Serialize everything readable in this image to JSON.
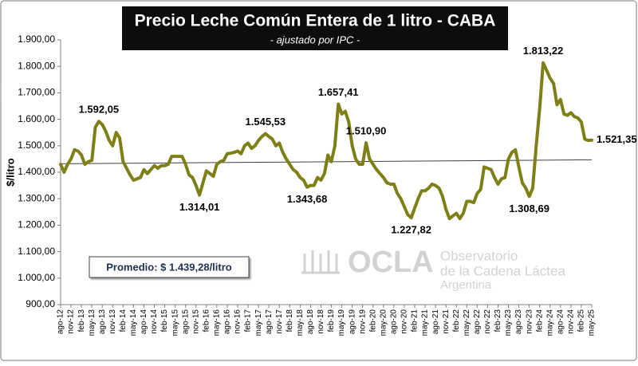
{
  "chart_data": {
    "type": "line",
    "title": "Precio Leche Común Entera de 1 litro - CABA",
    "subtitle": "- ajustado por IPC -",
    "y_label": "$/litro",
    "average_label": "Promedio: $ 1.439,28/litro",
    "logo": {
      "name": "OCLA",
      "lines": [
        "Observatorio",
        "de la Cadena Láctea",
        "Argentina"
      ]
    },
    "color": "#7f7f17",
    "trend": {
      "values": [
        1432,
        1447
      ],
      "color": "#404040"
    },
    "ylim": [
      900,
      1900
    ],
    "yticks": [
      {
        "value": 900,
        "label": "900,00"
      },
      {
        "value": 1000,
        "label": "1.000,00"
      },
      {
        "value": 1100,
        "label": "1.100,00"
      },
      {
        "value": 1200,
        "label": "1.200,00"
      },
      {
        "value": 1300,
        "label": "1.300,00"
      },
      {
        "value": 1400,
        "label": "1.400,00"
      },
      {
        "value": 1500,
        "label": "1.500,00"
      },
      {
        "value": 1600,
        "label": "1.600,00"
      },
      {
        "value": 1700,
        "label": "1.700,00"
      },
      {
        "value": 1800,
        "label": "1.800,00"
      },
      {
        "value": 1900,
        "label": "1.900,00"
      }
    ],
    "categories": [
      "ago-12",
      null,
      null,
      "nov-12",
      null,
      null,
      "feb-13",
      null,
      null,
      "may-13",
      null,
      null,
      "ago-13",
      null,
      null,
      "nov-13",
      null,
      null,
      "feb-14",
      null,
      null,
      "may-14",
      null,
      null,
      "ago-14",
      null,
      null,
      "nov-14",
      null,
      null,
      "feb-15",
      null,
      null,
      "may-15",
      null,
      null,
      "ago-15",
      null,
      null,
      "nov-15",
      null,
      null,
      "feb-16",
      null,
      null,
      "may-16",
      null,
      null,
      "ago-16",
      null,
      null,
      "nov-16",
      null,
      null,
      "feb-17",
      null,
      null,
      "may-17",
      null,
      null,
      "ago-17",
      null,
      null,
      "nov-17",
      null,
      null,
      "feb-18",
      null,
      null,
      "may-18",
      null,
      null,
      "ago-18",
      null,
      null,
      "nov-18",
      null,
      null,
      "feb-19",
      null,
      null,
      "may-19",
      null,
      null,
      "ago-19",
      null,
      null,
      "nov-19",
      null,
      null,
      "feb-20",
      null,
      null,
      "may-20",
      null,
      null,
      "ago-20",
      null,
      null,
      "nov-20",
      null,
      null,
      "feb-21",
      null,
      null,
      "may-21",
      null,
      null,
      "ago-21",
      null,
      null,
      "nov-21",
      null,
      null,
      "feb-22",
      null,
      null,
      "may-22",
      null,
      null,
      "ago-22",
      null,
      null,
      "nov-22",
      null,
      null,
      "feb-23",
      null,
      null,
      "may-23",
      null,
      null,
      "ago-23",
      null,
      null,
      "nov-23",
      null,
      null,
      "feb-24",
      null,
      null,
      "may-24",
      null,
      null,
      "ago-24",
      null,
      null,
      "nov-24",
      null,
      null,
      "feb-25",
      null,
      null,
      "may-25"
    ],
    "values": [
      1430,
      1400,
      1430,
      1450,
      1485,
      1480,
      1465,
      1430,
      1440,
      1445,
      1570,
      1592.05,
      1580,
      1555,
      1520,
      1500,
      1550,
      1530,
      1440,
      1415,
      1390,
      1370,
      1375,
      1380,
      1410,
      1395,
      1410,
      1425,
      1415,
      1425,
      1425,
      1430,
      1460,
      1460,
      1460,
      1460,
      1430,
      1390,
      1380,
      1350,
      1314.01,
      1360,
      1405,
      1395,
      1385,
      1430,
      1440,
      1445,
      1470,
      1472,
      1475,
      1480,
      1470,
      1500,
      1510,
      1490,
      1500,
      1520,
      1535,
      1545.53,
      1535,
      1525,
      1500,
      1510,
      1475,
      1450,
      1430,
      1410,
      1400,
      1380,
      1370,
      1343.68,
      1350,
      1350,
      1380,
      1370,
      1395,
      1465,
      1440,
      1500,
      1657.41,
      1620,
      1630,
      1590,
      1500,
      1450,
      1430,
      1430,
      1510.9,
      1450,
      1430,
      1410,
      1395,
      1380,
      1360,
      1355,
      1355,
      1320,
      1300,
      1270,
      1240,
      1227.82,
      1265,
      1300,
      1330,
      1330,
      1340,
      1355,
      1350,
      1340,
      1310,
      1260,
      1225,
      1235,
      1245,
      1225,
      1245,
      1290,
      1290,
      1285,
      1320,
      1335,
      1420,
      1415,
      1410,
      1380,
      1355,
      1375,
      1380,
      1450,
      1475,
      1485,
      1420,
      1360,
      1340,
      1308.69,
      1340,
      1500,
      1640,
      1813.22,
      1785,
      1755,
      1735,
      1655,
      1675,
      1620,
      1615,
      1625,
      1610,
      1605,
      1590,
      1525,
      1520,
      1521.35
    ],
    "value_labels": [
      null,
      null,
      null,
      null,
      null,
      null,
      null,
      null,
      null,
      null,
      null,
      "1.592,05",
      null,
      null,
      null,
      null,
      null,
      null,
      null,
      null,
      null,
      null,
      null,
      null,
      null,
      null,
      null,
      null,
      null,
      null,
      null,
      null,
      null,
      null,
      null,
      null,
      null,
      null,
      null,
      null,
      "1.314,01",
      null,
      null,
      null,
      null,
      null,
      null,
      null,
      null,
      null,
      null,
      null,
      null,
      null,
      null,
      null,
      null,
      null,
      null,
      "1.545,53",
      null,
      null,
      null,
      null,
      null,
      null,
      null,
      null,
      null,
      null,
      null,
      "1.343,68",
      null,
      null,
      null,
      null,
      null,
      null,
      null,
      null,
      "1.657,41",
      null,
      null,
      null,
      null,
      null,
      null,
      null,
      "1.510,90",
      null,
      null,
      null,
      null,
      null,
      null,
      null,
      null,
      null,
      null,
      null,
      null,
      "1.227,82",
      null,
      null,
      null,
      null,
      null,
      null,
      null,
      null,
      null,
      null,
      null,
      null,
      null,
      null,
      null,
      null,
      null,
      null,
      null,
      null,
      null,
      null,
      null,
      null,
      null,
      null,
      null,
      null,
      null,
      null,
      null,
      null,
      null,
      "1.308,69",
      null,
      null,
      null,
      "1.813,22",
      null,
      null,
      null,
      null,
      null,
      null,
      null,
      null,
      null,
      null,
      null,
      null,
      null,
      "1.521,35"
    ]
  }
}
